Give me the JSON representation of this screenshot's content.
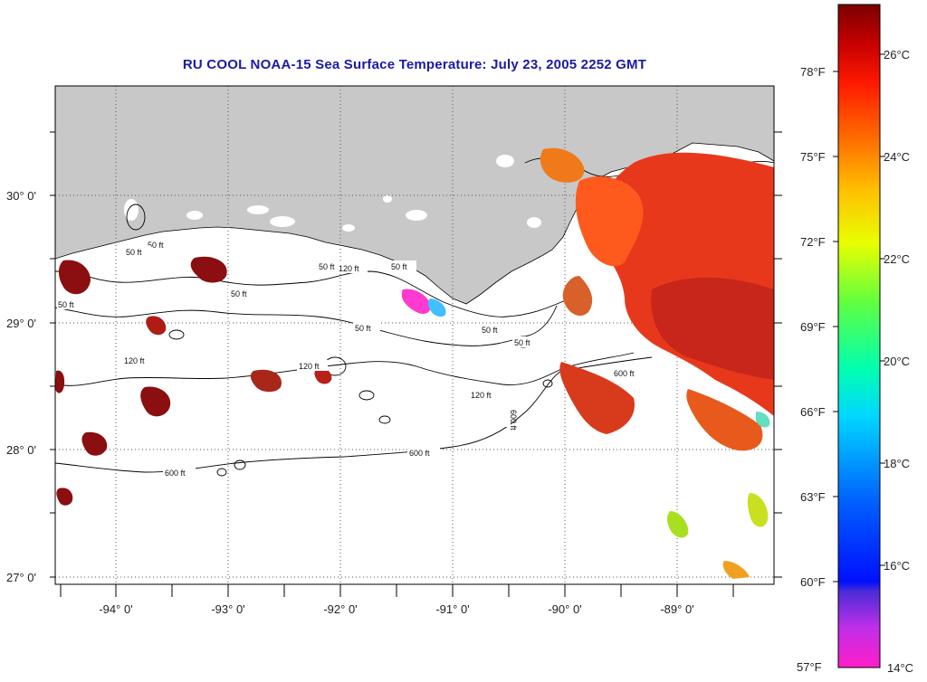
{
  "title": "RU COOL  NOAA-15  Sea Surface Temperature:  July 23, 2005 2252 GMT",
  "lat_labels": [
    "30° 0'",
    "29° 0'",
    "28° 0'",
    "27° 0'"
  ],
  "lon_labels": [
    "-94° 0'",
    "-93° 0'",
    "-92° 0'",
    "-91° 0'",
    "-90° 0'",
    "-89° 0'"
  ],
  "depth_labels": [
    "50 ft",
    "50 ft",
    "50 ft",
    "50 ft",
    "50 ft",
    "50 ft",
    "50 ft",
    "50 ft",
    "50 ft",
    "120 ft",
    "120 ft",
    "120 ft",
    "120 ft",
    "600 ft",
    "600 ft",
    "600 ft",
    "600 ft"
  ],
  "colorbar": {
    "f_labels": [
      "78°F",
      "75°F",
      "72°F",
      "69°F",
      "66°F",
      "63°F",
      "60°F",
      "57°F"
    ],
    "c_labels": [
      "26°C",
      "24°C",
      "22°C",
      "20°C",
      "18°C",
      "16°C",
      "14°C"
    ]
  },
  "colors": {
    "land": "#c8c8c8",
    "title": "#1a1aa6",
    "warm": "#e8381c",
    "hot": "#8b0e10"
  }
}
